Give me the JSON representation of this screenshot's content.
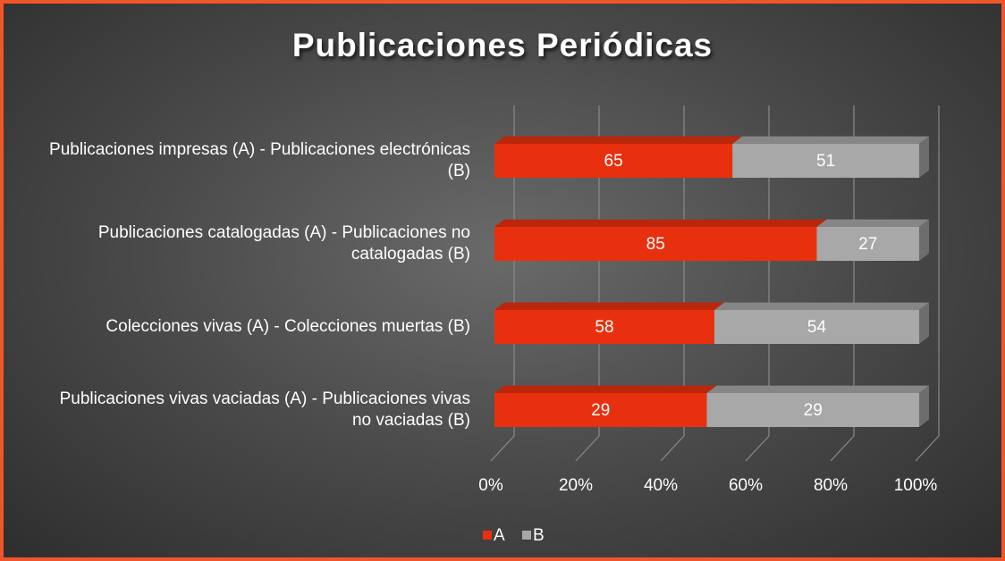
{
  "chart_data": {
    "type": "bar",
    "orientation": "horizontal",
    "stacked": "percent",
    "title": "Publicaciones Periódicas",
    "categories": [
      "Publicaciones impresas (A) - Publicaciones electrónicas (B)",
      "Publicaciones catalogadas (A) - Publicaciones no catalogadas (B)",
      "Colecciones vivas (A) - Colecciones muertas (B)",
      "Publicaciones vivas vaciadas (A) - Publicaciones vivas no vaciadas (B)"
    ],
    "series": [
      {
        "name": "A",
        "color": "#e8300e",
        "values": [
          65,
          85,
          58,
          29
        ]
      },
      {
        "name": "B",
        "color": "#a8a8a8",
        "values": [
          51,
          27,
          54,
          29
        ]
      }
    ],
    "xlim": [
      0,
      100
    ],
    "xticks": [
      {
        "value": 0,
        "label": "0%"
      },
      {
        "value": 20,
        "label": "20%"
      },
      {
        "value": 40,
        "label": "40%"
      },
      {
        "value": 60,
        "label": "60%"
      },
      {
        "value": 80,
        "label": "80%"
      },
      {
        "value": 100,
        "label": "100%"
      }
    ],
    "grid": true,
    "legend": "bottom"
  }
}
